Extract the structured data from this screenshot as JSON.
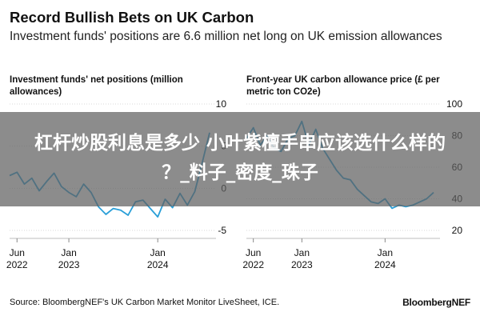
{
  "header": {
    "title": "Record Bullish Bets on UK Carbon",
    "subtitle": "Investment funds' positions are 6.6 million net long on UK emission allowances"
  },
  "chart_data": [
    {
      "type": "line",
      "title": "Investment funds' net positions (million allowances)",
      "xticks": [
        {
          "line1": "Jun",
          "line2": "2022",
          "date": "2022-06"
        },
        {
          "line1": "Jan",
          "line2": "2023",
          "date": "2023-01"
        },
        {
          "line1": "Jan",
          "line2": "2024",
          "date": "2024-01"
        }
      ],
      "yticks": [
        "10",
        "5",
        "0",
        "-5"
      ],
      "ylim": [
        -5,
        10
      ],
      "xlim": [
        "2022-05",
        "2024-08"
      ],
      "series": [
        {
          "color": "#2a9fd8",
          "x": [
            "2022-05",
            "2022-06",
            "2022-07",
            "2022-08",
            "2022-09",
            "2022-10",
            "2022-11",
            "2022-12",
            "2023-01",
            "2023-02",
            "2023-03",
            "2023-04",
            "2023-05",
            "2023-06",
            "2023-07",
            "2023-08",
            "2023-09",
            "2023-10",
            "2023-11",
            "2023-12",
            "2024-01",
            "2024-02",
            "2024-03",
            "2024-04",
            "2024-05",
            "2024-06",
            "2024-07",
            "2024-08"
          ],
          "y": [
            1.5,
            1.9,
            0.5,
            1.2,
            -0.3,
            0.8,
            1.8,
            0.2,
            -0.5,
            -1.0,
            0.5,
            -0.5,
            -2.2,
            -3.1,
            -2.4,
            -2.6,
            -3.2,
            -1.6,
            -1.4,
            -2.4,
            -3.4,
            -1.3,
            -2.3,
            -0.6,
            -2.0,
            -0.4,
            3.0,
            6.6
          ]
        }
      ]
    },
    {
      "type": "line",
      "title": "Front-year UK carbon allowance price (£ per metric ton CO2e)",
      "xticks": [
        {
          "line1": "Jun",
          "line2": "2022",
          "date": "2022-06"
        },
        {
          "line1": "Jan",
          "line2": "2023",
          "date": "2023-01"
        },
        {
          "line1": "Jan",
          "line2": "2024",
          "date": "2024-01"
        }
      ],
      "yticks": [
        "100",
        "80",
        "60",
        "40",
        "20"
      ],
      "ylim": [
        20,
        100
      ],
      "xlim": [
        "2022-05",
        "2024-08"
      ],
      "series": [
        {
          "color": "#2a9fd8",
          "x": [
            "2022-05",
            "2022-06",
            "2022-07",
            "2022-08",
            "2022-09",
            "2022-10",
            "2022-11",
            "2022-12",
            "2023-01",
            "2023-02",
            "2023-03",
            "2023-04",
            "2023-05",
            "2023-06",
            "2023-07",
            "2023-08",
            "2023-09",
            "2023-10",
            "2023-11",
            "2023-12",
            "2024-01",
            "2024-02",
            "2024-03",
            "2024-04",
            "2024-05",
            "2024-06",
            "2024-07",
            "2024-08"
          ],
          "y": [
            78,
            85,
            74,
            80,
            72,
            70,
            78,
            80,
            89,
            74,
            84,
            72,
            65,
            58,
            53,
            52,
            46,
            42,
            38,
            37,
            40,
            34,
            36,
            35,
            36,
            38,
            40,
            44
          ]
        }
      ]
    }
  ],
  "footer": {
    "source": "Source: BloombergNEF's UK Carbon Market Monitor LiveSheet, ICE.",
    "brand": "BloombergNEF"
  },
  "overlay": {
    "line1": "杠杆炒股利息是多少 小叶紫檀手串应该选什么样的",
    "line2": "？_料子_密度_珠子"
  }
}
